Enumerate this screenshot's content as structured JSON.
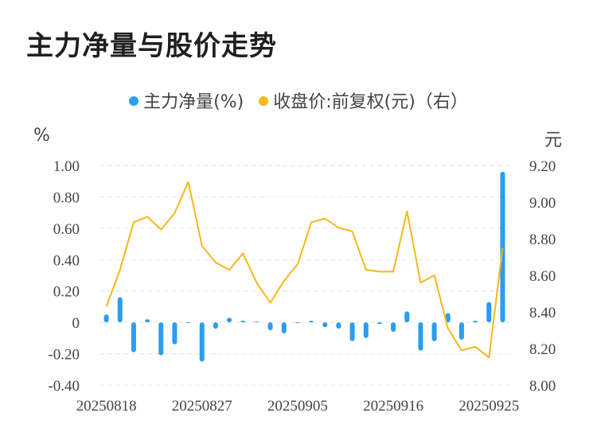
{
  "title": "主力净量与股价走势",
  "legend": {
    "series1": "主力净量(%)",
    "series2": "收盘价:前复权(元)（右）"
  },
  "units": {
    "left": "%",
    "right": "元"
  },
  "colors": {
    "bar": "#2b9df0",
    "line": "#f5b81c",
    "grid": "#e6e6e6",
    "text": "#444444"
  },
  "chart_data": {
    "type": "bar+line",
    "title": "主力净量与股价走势",
    "x_tick_labels": [
      "20250818",
      "20250827",
      "20250905",
      "20250916",
      "20250925"
    ],
    "x_tick_index": [
      0,
      7,
      14,
      21,
      28
    ],
    "y_left": {
      "label": "%",
      "range": [
        -0.4,
        1.0
      ],
      "ticks": [
        "1.00",
        "0.80",
        "0.60",
        "0.40",
        "0.20",
        "0",
        "-0.20",
        "-0.40"
      ]
    },
    "y_right": {
      "label": "元",
      "range": [
        8.0,
        9.2
      ],
      "ticks": [
        "9.20",
        "9.00",
        "8.80",
        "8.60",
        "8.40",
        "8.20",
        "8.00"
      ]
    },
    "series": [
      {
        "name": "主力净量(%)",
        "type": "bar",
        "axis": "left",
        "values": [
          0.05,
          0.16,
          -0.19,
          0.02,
          -0.21,
          -0.14,
          0.0,
          -0.25,
          -0.04,
          0.03,
          0.01,
          0.005,
          -0.05,
          -0.07,
          0.0,
          0.01,
          -0.03,
          -0.04,
          -0.12,
          -0.1,
          -0.01,
          -0.06,
          0.07,
          -0.18,
          -0.12,
          0.06,
          -0.11,
          0.01,
          0.13,
          0.96
        ]
      },
      {
        "name": "收盘价:前复权(元)（右）",
        "type": "line",
        "axis": "right",
        "values": [
          8.43,
          8.63,
          8.89,
          8.92,
          8.85,
          8.94,
          9.11,
          8.76,
          8.67,
          8.63,
          8.72,
          8.56,
          8.45,
          8.57,
          8.66,
          8.89,
          8.91,
          8.86,
          8.84,
          8.63,
          8.62,
          8.62,
          8.95,
          8.56,
          8.6,
          8.31,
          8.19,
          8.21,
          8.15,
          8.75
        ]
      }
    ]
  }
}
